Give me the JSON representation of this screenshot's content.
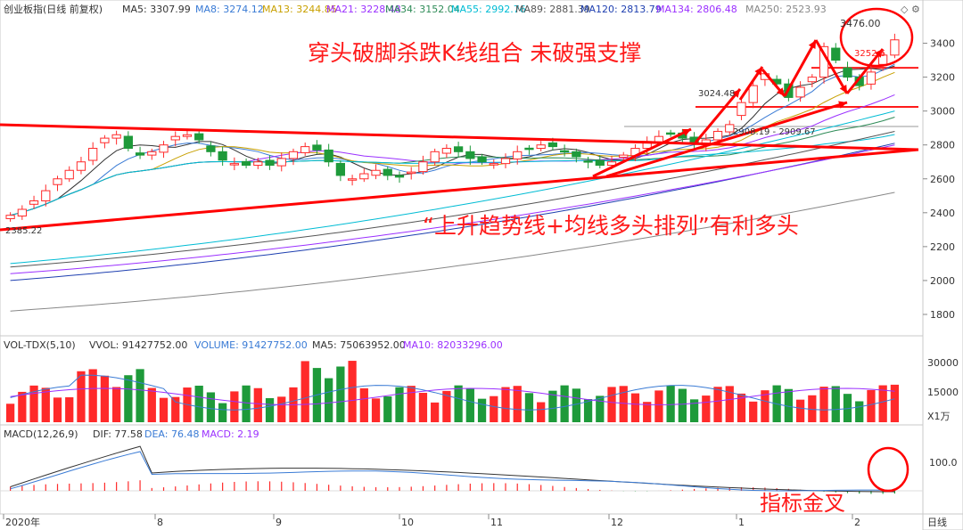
{
  "header": {
    "title": "创业板指(日线 前复权)",
    "ma": [
      {
        "label": "MA5: 3307.99",
        "color": "#333333"
      },
      {
        "label": "MA8: 3274.12",
        "color": "#3a7bd5"
      },
      {
        "label": "MA13: 3244.85",
        "color": "#c8a000"
      },
      {
        "label": "MA21: 3228.48",
        "color": "#9b30ff"
      },
      {
        "label": "MA34: 3152.04",
        "color": "#2e8b57"
      },
      {
        "label": "MA55: 2992.76",
        "color": "#00bcd4"
      },
      {
        "label": "MA89: 2881.39",
        "color": "#555555"
      },
      {
        "label": "MA120: 2813.79",
        "color": "#1e3fb0"
      },
      {
        "label": "MA134: 2806.48",
        "color": "#9b30ff"
      },
      {
        "label": "MA250: 2523.93",
        "color": "#888888"
      }
    ]
  },
  "price_axis": [
    "3400",
    "3200",
    "3000",
    "2800",
    "2600",
    "2400",
    "2200",
    "2000",
    "1800"
  ],
  "annotations": {
    "top_text": "穿头破脚杀跌K线组合  未破强支撑",
    "mid_text": "“上升趋势线+均线多头排列”有利多头",
    "macd_text": "指标金叉",
    "price_high": "3476.00",
    "price_3252": "3252.6",
    "price_3024": "3024.48",
    "price_2908": "2908.19 - 2909.67",
    "price_low": "2385.22"
  },
  "volume_header": {
    "title": "VOL-TDX(5,10)",
    "vvol": "VVOL: 91427752.00",
    "volume": "VOLUME: 91427752.00",
    "ma5": "MA5: 75063952.00",
    "ma10": "MA10: 82033296.00"
  },
  "volume_axis": [
    "30000",
    "15000"
  ],
  "volume_unit": "X1万",
  "macd_header": {
    "title": "MACD(12,26,9)",
    "dif": "DIF: 77.58",
    "dea": "DEA: 76.48",
    "macd": "MACD: 2.19"
  },
  "macd_axis": [
    "100.0"
  ],
  "time_axis": [
    "2020年",
    "8",
    "9",
    "10",
    "11",
    "12",
    "1",
    "2"
  ],
  "period_label": "日线",
  "colors": {
    "up": "#ff2a2a",
    "down": "#1e9a3a",
    "trend": "#ff0000"
  },
  "chart_data": {
    "type": "candlestick",
    "title": "创业板指(日线 前复权)",
    "x_range": [
      "2020年",
      "2"
    ],
    "ylim": [
      1700,
      3550
    ],
    "closes_approx": [
      2385,
      2420,
      2470,
      2530,
      2600,
      2650,
      2700,
      2780,
      2840,
      2860,
      2780,
      2740,
      2760,
      2800,
      2850,
      2860,
      2830,
      2760,
      2710,
      2690,
      2680,
      2700,
      2680,
      2720,
      2760,
      2790,
      2770,
      2700,
      2620,
      2600,
      2630,
      2650,
      2620,
      2610,
      2640,
      2700,
      2760,
      2780,
      2760,
      2720,
      2700,
      2690,
      2720,
      2760,
      2780,
      2800,
      2790,
      2760,
      2730,
      2700,
      2680,
      2700,
      2740,
      2780,
      2820,
      2850,
      2870,
      2840,
      2810,
      2830,
      2880,
      2920,
      3050,
      3150,
      3220,
      3160,
      3080,
      3140,
      3200,
      3380,
      3300,
      3200,
      3150,
      3230,
      3330,
      3420
    ],
    "volume_max": 33000,
    "volume_last": 9142.78,
    "macd_ylim": [
      -60,
      140
    ]
  }
}
